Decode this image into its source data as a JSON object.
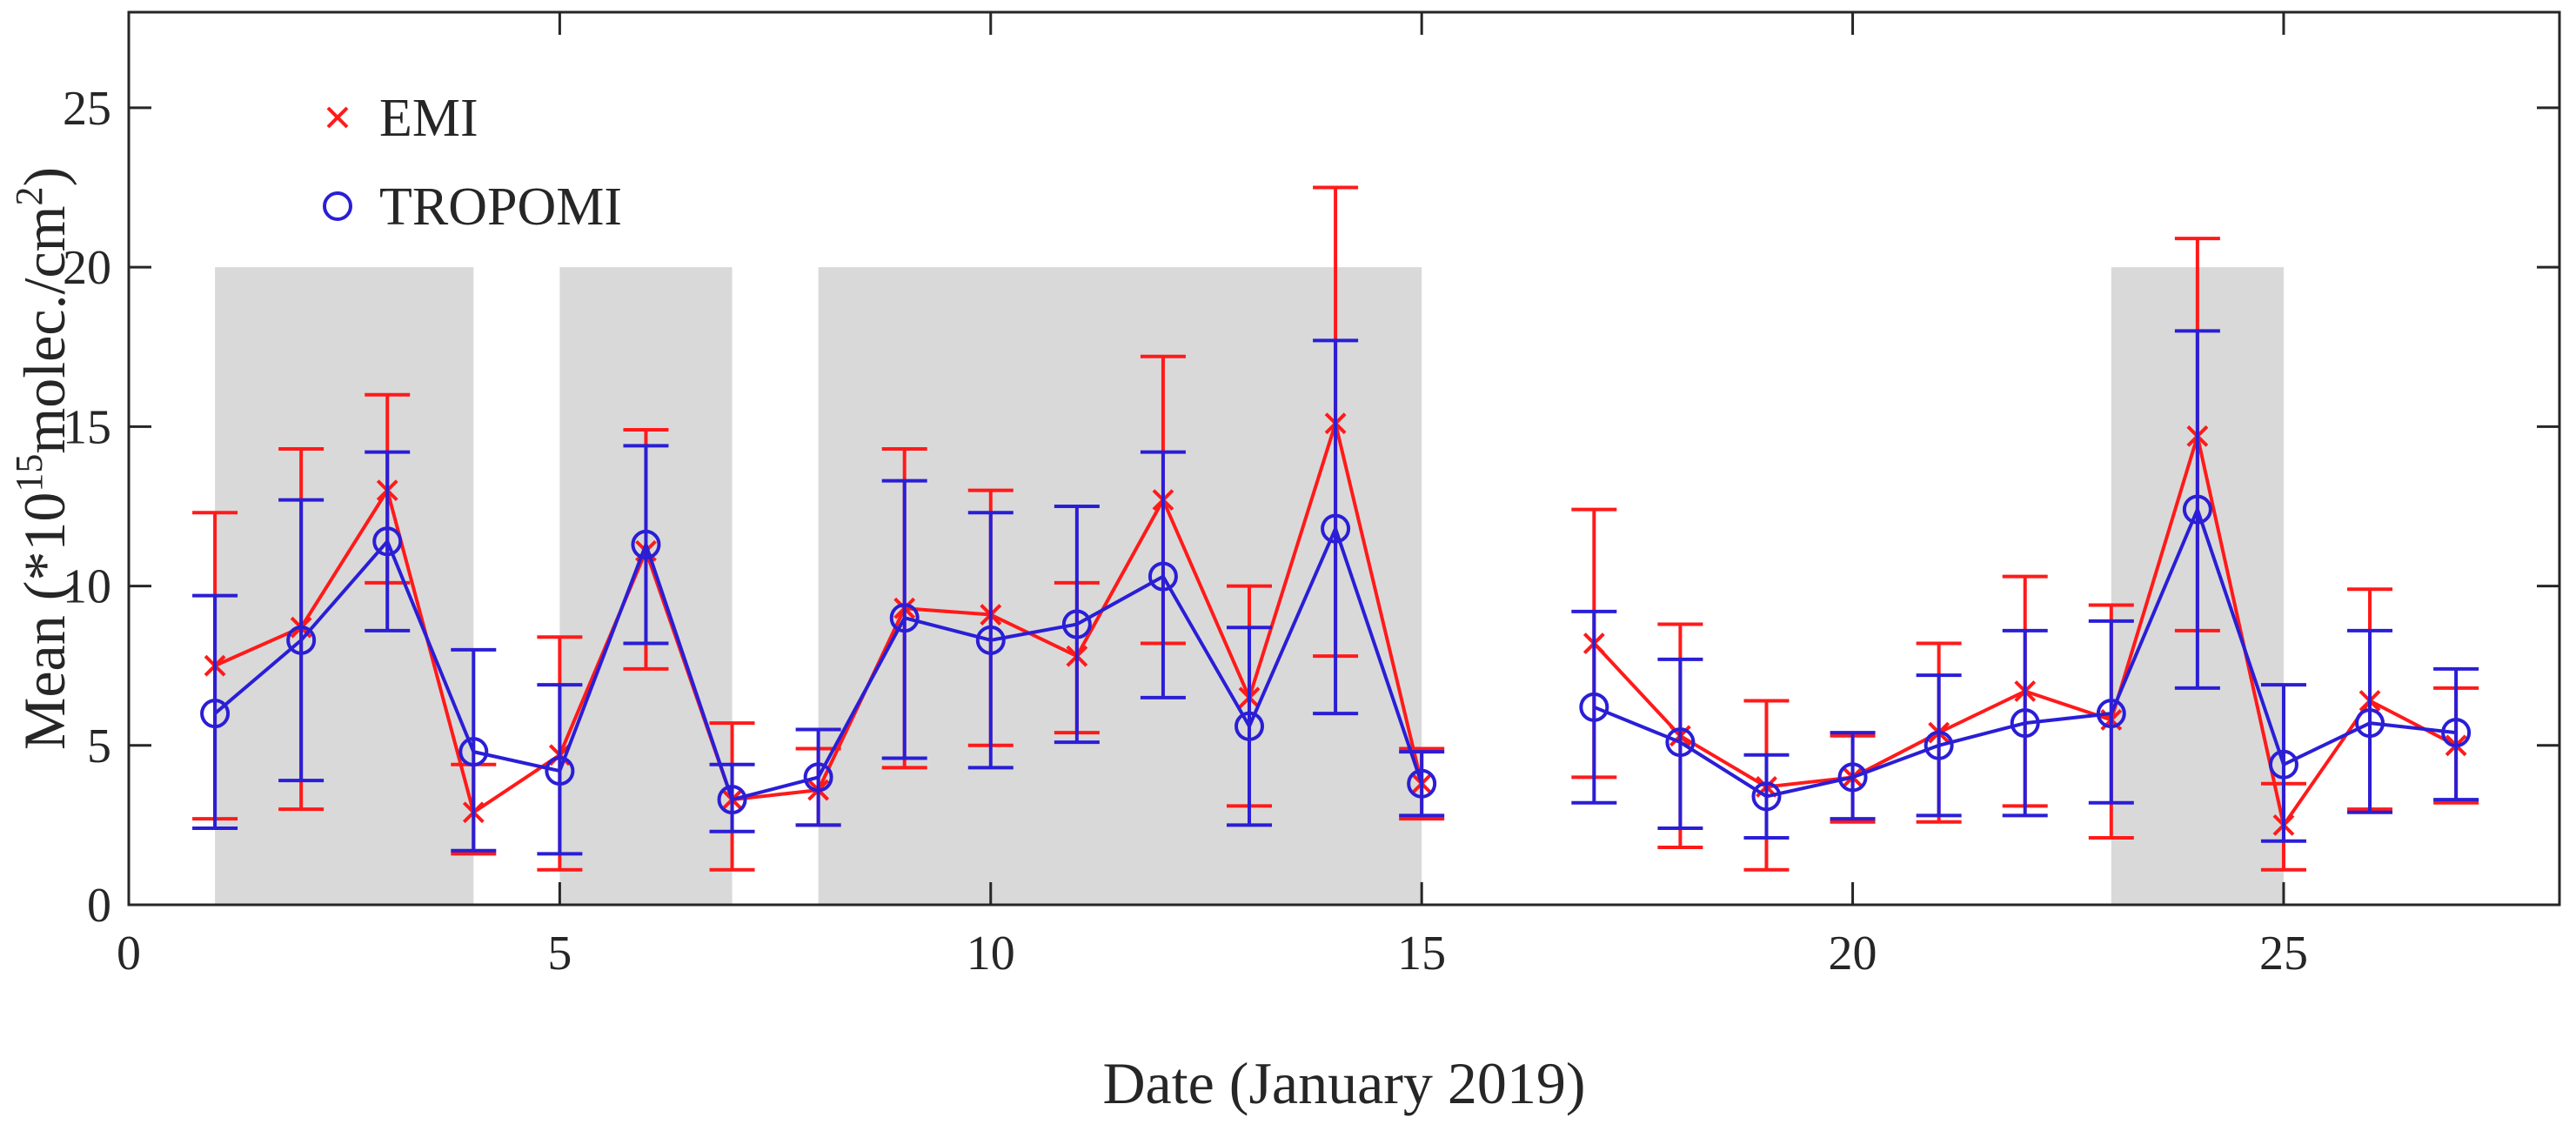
{
  "chart_data": {
    "type": "line",
    "title": "",
    "xlabel": "Date (January 2019)",
    "ylabel": {
      "prefix": "Mean (*10",
      "exponent": "15",
      "middle": "molec./cm",
      "exponent2": "2",
      "suffix": ")"
    },
    "xlim": [
      0,
      28.2
    ],
    "ylim": [
      0,
      28
    ],
    "xticks": [
      0,
      5,
      10,
      15,
      20,
      25
    ],
    "yticks": [
      0,
      5,
      10,
      15,
      20,
      25
    ],
    "grid": false,
    "legend_position": "top-left",
    "shaded_spans": [
      {
        "x0": 1,
        "x1": 4,
        "y_top": 20
      },
      {
        "x0": 5,
        "x1": 7,
        "y_top": 20
      },
      {
        "x0": 8,
        "x1": 15,
        "y_top": 20
      },
      {
        "x0": 23,
        "x1": 25,
        "y_top": 20
      }
    ],
    "series": [
      {
        "name": "EMI",
        "marker": "x",
        "color": "#ff1a1a",
        "segments": [
          [
            {
              "x": 1,
              "y": 7.5,
              "lo": 2.7,
              "hi": 12.3
            },
            {
              "x": 2,
              "y": 8.7,
              "lo": 3.0,
              "hi": 14.3
            },
            {
              "x": 3,
              "y": 13.0,
              "lo": 10.1,
              "hi": 16.0
            },
            {
              "x": 4,
              "y": 2.9,
              "lo": 1.6,
              "hi": 4.4
            },
            {
              "x": 5,
              "y": 4.7,
              "lo": 1.1,
              "hi": 8.4
            },
            {
              "x": 6,
              "y": 11.1,
              "lo": 7.4,
              "hi": 14.9
            },
            {
              "x": 7,
              "y": 3.3,
              "lo": 1.1,
              "hi": 5.7
            },
            {
              "x": 8,
              "y": 3.6,
              "lo": 2.5,
              "hi": 4.9
            },
            {
              "x": 9,
              "y": 9.3,
              "lo": 4.3,
              "hi": 14.3
            },
            {
              "x": 10,
              "y": 9.1,
              "lo": 5.0,
              "hi": 13.0
            },
            {
              "x": 11,
              "y": 7.8,
              "lo": 5.4,
              "hi": 10.1
            },
            {
              "x": 12,
              "y": 12.7,
              "lo": 8.2,
              "hi": 17.2
            },
            {
              "x": 13,
              "y": 6.5,
              "lo": 3.1,
              "hi": 10.0
            },
            {
              "x": 14,
              "y": 15.1,
              "lo": 7.8,
              "hi": 22.5
            },
            {
              "x": 15,
              "y": 3.8,
              "lo": 2.7,
              "hi": 4.9
            }
          ],
          [
            {
              "x": 17,
              "y": 8.2,
              "lo": 4.0,
              "hi": 12.4
            },
            {
              "x": 18,
              "y": 5.3,
              "lo": 1.8,
              "hi": 8.8
            },
            {
              "x": 19,
              "y": 3.7,
              "lo": 1.1,
              "hi": 6.4
            },
            {
              "x": 20,
              "y": 4.0,
              "lo": 2.6,
              "hi": 5.3
            },
            {
              "x": 21,
              "y": 5.4,
              "lo": 2.6,
              "hi": 8.2
            },
            {
              "x": 22,
              "y": 6.7,
              "lo": 3.1,
              "hi": 10.3
            },
            {
              "x": 23,
              "y": 5.8,
              "lo": 2.1,
              "hi": 9.4
            },
            {
              "x": 24,
              "y": 14.7,
              "lo": 8.6,
              "hi": 20.9
            },
            {
              "x": 25,
              "y": 2.5,
              "lo": 1.1,
              "hi": 3.8
            },
            {
              "x": 26,
              "y": 6.4,
              "lo": 3.0,
              "hi": 9.9
            },
            {
              "x": 27,
              "y": 5.0,
              "lo": 3.2,
              "hi": 6.8
            }
          ]
        ]
      },
      {
        "name": "TROPOMI",
        "marker": "o",
        "color": "#2a1ed6",
        "segments": [
          [
            {
              "x": 1,
              "y": 6.0,
              "lo": 2.4,
              "hi": 9.7
            },
            {
              "x": 2,
              "y": 8.3,
              "lo": 3.9,
              "hi": 12.7
            },
            {
              "x": 3,
              "y": 11.4,
              "lo": 8.6,
              "hi": 14.2
            },
            {
              "x": 4,
              "y": 4.8,
              "lo": 1.7,
              "hi": 8.0
            },
            {
              "x": 5,
              "y": 4.2,
              "lo": 1.6,
              "hi": 6.9
            },
            {
              "x": 6,
              "y": 11.3,
              "lo": 8.2,
              "hi": 14.4
            },
            {
              "x": 7,
              "y": 3.3,
              "lo": 2.3,
              "hi": 4.4
            },
            {
              "x": 8,
              "y": 4.0,
              "lo": 2.5,
              "hi": 5.5
            },
            {
              "x": 9,
              "y": 9.0,
              "lo": 4.6,
              "hi": 13.3
            },
            {
              "x": 10,
              "y": 8.3,
              "lo": 4.3,
              "hi": 12.3
            },
            {
              "x": 11,
              "y": 8.8,
              "lo": 5.1,
              "hi": 12.5
            },
            {
              "x": 12,
              "y": 10.3,
              "lo": 6.5,
              "hi": 14.2
            },
            {
              "x": 13,
              "y": 5.6,
              "lo": 2.5,
              "hi": 8.7
            },
            {
              "x": 14,
              "y": 11.8,
              "lo": 6.0,
              "hi": 17.7
            },
            {
              "x": 15,
              "y": 3.8,
              "lo": 2.8,
              "hi": 4.8
            }
          ],
          [
            {
              "x": 17,
              "y": 6.2,
              "lo": 3.2,
              "hi": 9.2
            },
            {
              "x": 18,
              "y": 5.1,
              "lo": 2.4,
              "hi": 7.7
            },
            {
              "x": 19,
              "y": 3.4,
              "lo": 2.1,
              "hi": 4.7
            },
            {
              "x": 20,
              "y": 4.0,
              "lo": 2.7,
              "hi": 5.4
            },
            {
              "x": 21,
              "y": 5.0,
              "lo": 2.8,
              "hi": 7.2
            },
            {
              "x": 22,
              "y": 5.7,
              "lo": 2.8,
              "hi": 8.6
            },
            {
              "x": 23,
              "y": 6.0,
              "lo": 3.2,
              "hi": 8.9
            },
            {
              "x": 24,
              "y": 12.4,
              "lo": 6.8,
              "hi": 18.0
            },
            {
              "x": 25,
              "y": 4.4,
              "lo": 2.0,
              "hi": 6.9
            },
            {
              "x": 26,
              "y": 5.7,
              "lo": 2.9,
              "hi": 8.6
            },
            {
              "x": 27,
              "y": 5.4,
              "lo": 3.3,
              "hi": 7.4
            }
          ]
        ]
      }
    ]
  }
}
